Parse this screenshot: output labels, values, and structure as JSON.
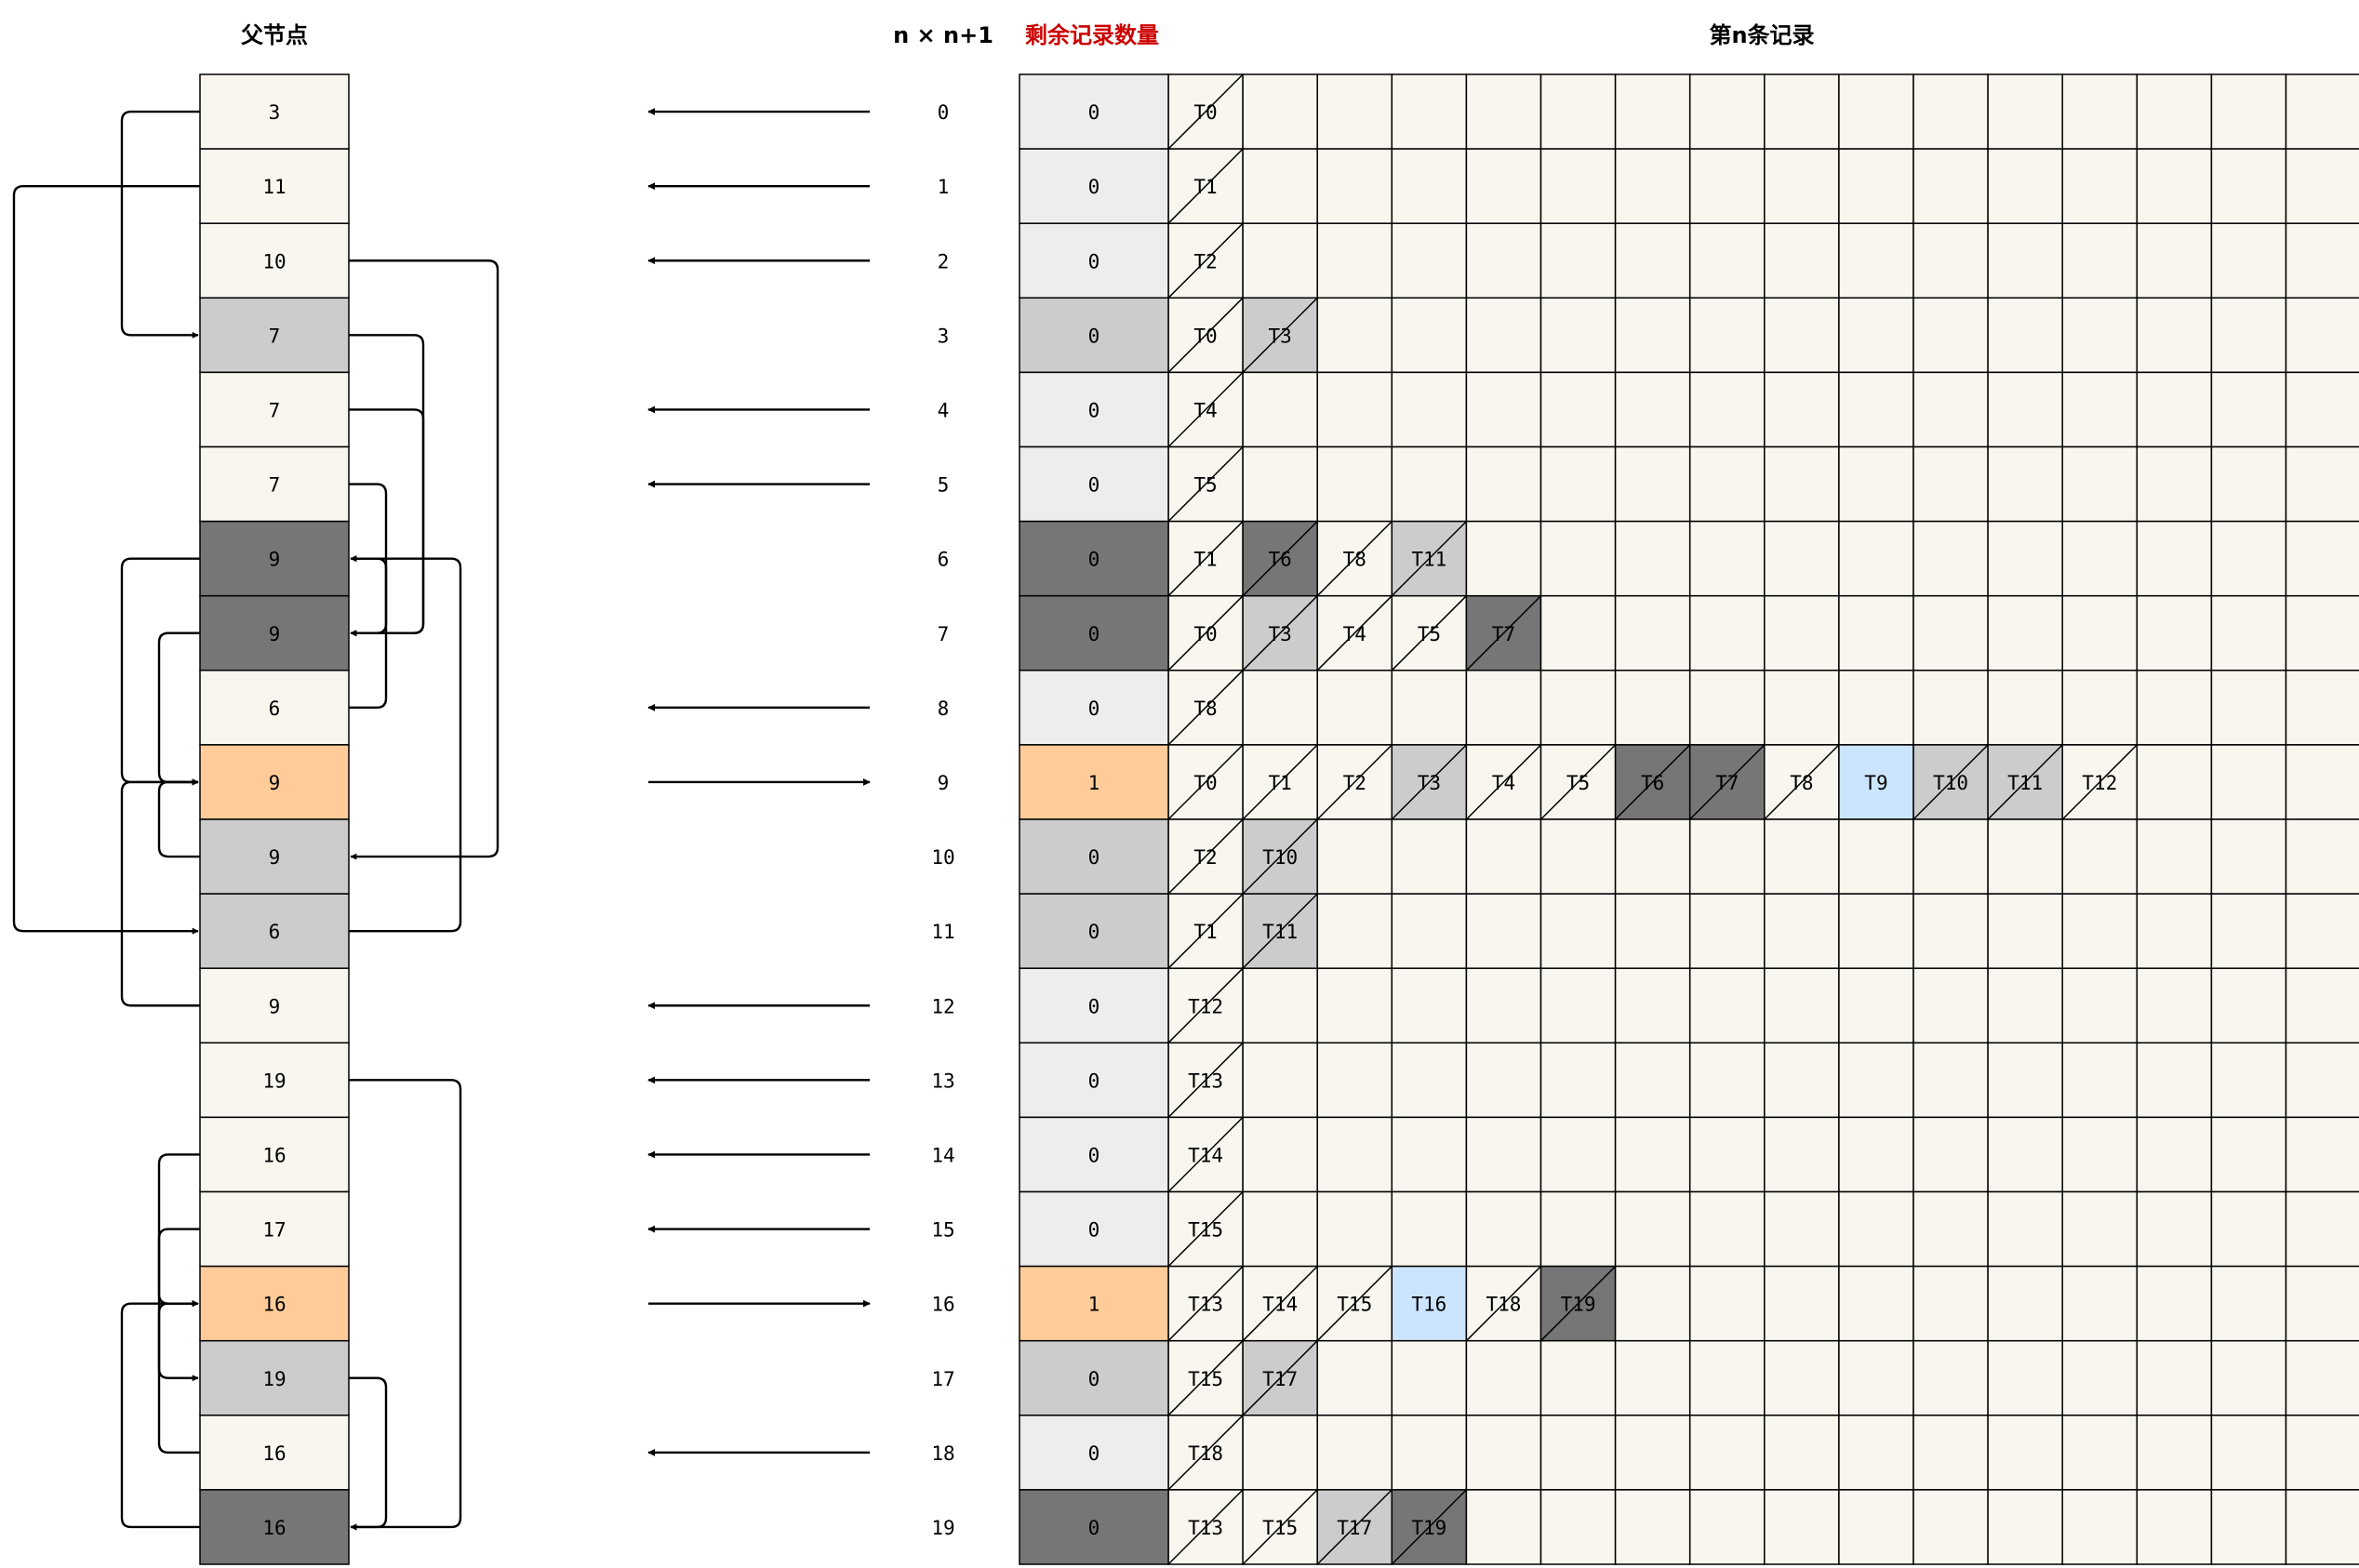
{
  "headers": {
    "parent": "父节点",
    "n_col": "n × n+1",
    "remaining": "剩余记录数量",
    "records": "第n条记录"
  },
  "colors": {
    "cream": "#f8f6ee",
    "light": "#ededed",
    "mid": "#cccccc",
    "dark": "#767676",
    "orange": "#ffcc99",
    "blue": "#cce5ff",
    "red": "#cc0000"
  },
  "grid_columns": 16,
  "parents": [
    {
      "value": "3",
      "tone": "cream"
    },
    {
      "value": "11",
      "tone": "cream"
    },
    {
      "value": "10",
      "tone": "cream"
    },
    {
      "value": "7",
      "tone": "mid"
    },
    {
      "value": "7",
      "tone": "cream"
    },
    {
      "value": "7",
      "tone": "cream"
    },
    {
      "value": "9",
      "tone": "dark"
    },
    {
      "value": "9",
      "tone": "dark"
    },
    {
      "value": "6",
      "tone": "cream"
    },
    {
      "value": "9",
      "tone": "orange"
    },
    {
      "value": "9",
      "tone": "mid"
    },
    {
      "value": "6",
      "tone": "mid"
    },
    {
      "value": "9",
      "tone": "cream"
    },
    {
      "value": "19",
      "tone": "cream"
    },
    {
      "value": "16",
      "tone": "cream"
    },
    {
      "value": "17",
      "tone": "cream"
    },
    {
      "value": "16",
      "tone": "orange"
    },
    {
      "value": "19",
      "tone": "mid"
    },
    {
      "value": "16",
      "tone": "cream"
    },
    {
      "value": "16",
      "tone": "dark"
    }
  ],
  "arrows": [
    "left",
    "left",
    "left",
    "none",
    "left",
    "left",
    "none",
    "none",
    "left",
    "right",
    "none",
    "none",
    "left",
    "left",
    "left",
    "left",
    "right",
    "none",
    "left",
    "none"
  ],
  "indexes": [
    "0",
    "1",
    "2",
    "3",
    "4",
    "5",
    "6",
    "7",
    "8",
    "9",
    "10",
    "11",
    "12",
    "13",
    "14",
    "15",
    "16",
    "17",
    "18",
    "19"
  ],
  "remaining": [
    {
      "value": "0",
      "tone": "light"
    },
    {
      "value": "0",
      "tone": "light"
    },
    {
      "value": "0",
      "tone": "light"
    },
    {
      "value": "0",
      "tone": "mid"
    },
    {
      "value": "0",
      "tone": "light"
    },
    {
      "value": "0",
      "tone": "light"
    },
    {
      "value": "0",
      "tone": "dark"
    },
    {
      "value": "0",
      "tone": "dark"
    },
    {
      "value": "0",
      "tone": "light"
    },
    {
      "value": "1",
      "tone": "orange"
    },
    {
      "value": "0",
      "tone": "mid"
    },
    {
      "value": "0",
      "tone": "mid"
    },
    {
      "value": "0",
      "tone": "light"
    },
    {
      "value": "0",
      "tone": "light"
    },
    {
      "value": "0",
      "tone": "light"
    },
    {
      "value": "0",
      "tone": "light"
    },
    {
      "value": "1",
      "tone": "orange"
    },
    {
      "value": "0",
      "tone": "mid"
    },
    {
      "value": "0",
      "tone": "light"
    },
    {
      "value": "0",
      "tone": "dark"
    }
  ],
  "records": [
    [
      {
        "label": "T0",
        "tone": "cream",
        "slash": true
      }
    ],
    [
      {
        "label": "T1",
        "tone": "cream",
        "slash": true
      }
    ],
    [
      {
        "label": "T2",
        "tone": "cream",
        "slash": true
      }
    ],
    [
      {
        "label": "T0",
        "tone": "cream",
        "slash": true
      },
      {
        "label": "T3",
        "tone": "mid",
        "slash": true
      }
    ],
    [
      {
        "label": "T4",
        "tone": "cream",
        "slash": true
      }
    ],
    [
      {
        "label": "T5",
        "tone": "cream",
        "slash": true
      }
    ],
    [
      {
        "label": "T1",
        "tone": "cream",
        "slash": true
      },
      {
        "label": "T6",
        "tone": "dark",
        "slash": true
      },
      {
        "label": "T8",
        "tone": "cream",
        "slash": true
      },
      {
        "label": "T11",
        "tone": "mid",
        "slash": true
      }
    ],
    [
      {
        "label": "T0",
        "tone": "cream",
        "slash": true
      },
      {
        "label": "T3",
        "tone": "mid",
        "slash": true
      },
      {
        "label": "T4",
        "tone": "cream",
        "slash": true
      },
      {
        "label": "T5",
        "tone": "cream",
        "slash": true
      },
      {
        "label": "T7",
        "tone": "dark",
        "slash": true
      }
    ],
    [
      {
        "label": "T8",
        "tone": "cream",
        "slash": true
      }
    ],
    [
      {
        "label": "T0",
        "tone": "cream",
        "slash": true
      },
      {
        "label": "T1",
        "tone": "cream",
        "slash": true
      },
      {
        "label": "T2",
        "tone": "cream",
        "slash": true
      },
      {
        "label": "T3",
        "tone": "mid",
        "slash": true
      },
      {
        "label": "T4",
        "tone": "cream",
        "slash": true
      },
      {
        "label": "T5",
        "tone": "cream",
        "slash": true
      },
      {
        "label": "T6",
        "tone": "dark",
        "slash": true
      },
      {
        "label": "T7",
        "tone": "dark",
        "slash": true
      },
      {
        "label": "T8",
        "tone": "cream",
        "slash": true
      },
      {
        "label": "T9",
        "tone": "blue",
        "slash": false
      },
      {
        "label": "T10",
        "tone": "mid",
        "slash": true
      },
      {
        "label": "T11",
        "tone": "mid",
        "slash": true
      },
      {
        "label": "T12",
        "tone": "cream",
        "slash": true
      }
    ],
    [
      {
        "label": "T2",
        "tone": "cream",
        "slash": true
      },
      {
        "label": "T10",
        "tone": "mid",
        "slash": true
      }
    ],
    [
      {
        "label": "T1",
        "tone": "cream",
        "slash": true
      },
      {
        "label": "T11",
        "tone": "mid",
        "slash": true
      }
    ],
    [
      {
        "label": "T12",
        "tone": "cream",
        "slash": true
      }
    ],
    [
      {
        "label": "T13",
        "tone": "cream",
        "slash": true
      }
    ],
    [
      {
        "label": "T14",
        "tone": "cream",
        "slash": true
      }
    ],
    [
      {
        "label": "T15",
        "tone": "cream",
        "slash": true
      }
    ],
    [
      {
        "label": "T13",
        "tone": "cream",
        "slash": true
      },
      {
        "label": "T14",
        "tone": "cream",
        "slash": true
      },
      {
        "label": "T15",
        "tone": "cream",
        "slash": true
      },
      {
        "label": "T16",
        "tone": "blue",
        "slash": false
      },
      {
        "label": "T18",
        "tone": "cream",
        "slash": true
      },
      {
        "label": "T19",
        "tone": "dark",
        "slash": true
      }
    ],
    [
      {
        "label": "T15",
        "tone": "cream",
        "slash": true
      },
      {
        "label": "T17",
        "tone": "mid",
        "slash": true
      }
    ],
    [
      {
        "label": "T18",
        "tone": "cream",
        "slash": true
      }
    ],
    [
      {
        "label": "T13",
        "tone": "cream",
        "slash": true
      },
      {
        "label": "T15",
        "tone": "cream",
        "slash": true
      },
      {
        "label": "T17",
        "tone": "mid",
        "slash": true
      },
      {
        "label": "T19",
        "tone": "dark",
        "slash": true
      }
    ]
  ],
  "parent_links": [
    {
      "from": 0,
      "to": 3,
      "side": "left"
    },
    {
      "from": 1,
      "to": 11,
      "side": "left"
    },
    {
      "from": 2,
      "to": 10,
      "side": "right"
    },
    {
      "from": 3,
      "to": 7,
      "side": "right"
    },
    {
      "from": 4,
      "to": 7,
      "side": "right"
    },
    {
      "from": 5,
      "to": 7,
      "side": "right"
    },
    {
      "from": 6,
      "to": 9,
      "side": "left"
    },
    {
      "from": 7,
      "to": 9,
      "side": "left"
    },
    {
      "from": 8,
      "to": 6,
      "side": "right"
    },
    {
      "from": 10,
      "to": 9,
      "side": "left"
    },
    {
      "from": 11,
      "to": 6,
      "side": "right"
    },
    {
      "from": 12,
      "to": 9,
      "side": "left"
    },
    {
      "from": 13,
      "to": 19,
      "side": "right"
    },
    {
      "from": 14,
      "to": 16,
      "side": "left"
    },
    {
      "from": 15,
      "to": 17,
      "side": "left"
    },
    {
      "from": 17,
      "to": 19,
      "side": "right"
    },
    {
      "from": 18,
      "to": 16,
      "side": "left"
    },
    {
      "from": 19,
      "to": 16,
      "side": "left"
    }
  ]
}
